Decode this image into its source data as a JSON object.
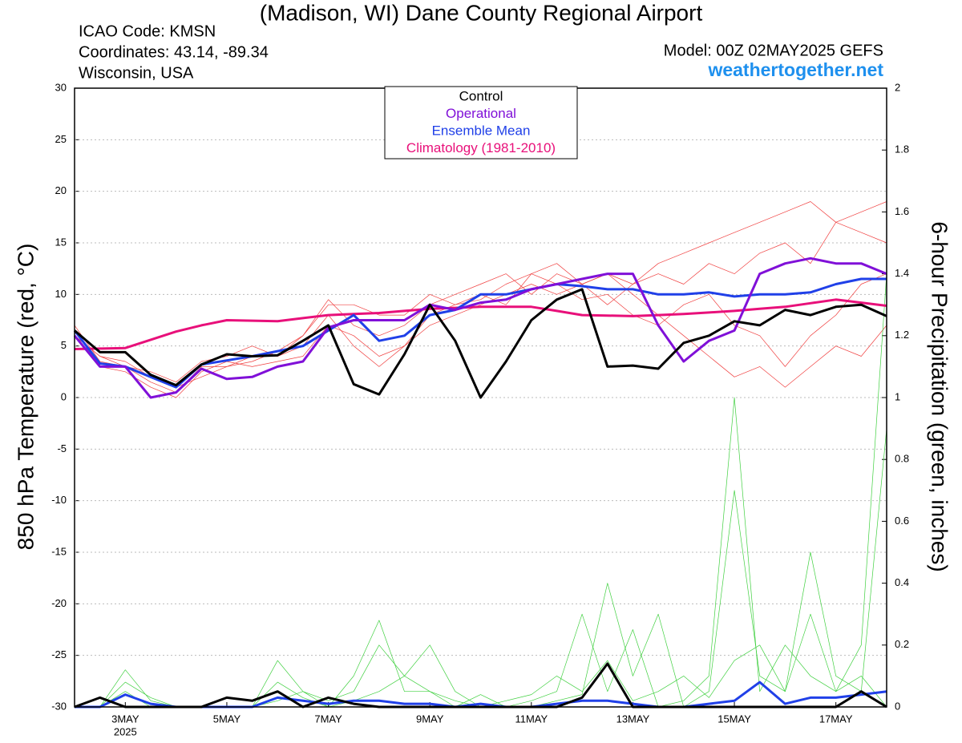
{
  "chart_data": {
    "type": "line",
    "title": "(Madison, WI) Dane County Regional Airport",
    "info_left": [
      "ICAO Code: KMSN",
      "Coordinates: 43.14, -89.34",
      "Wisconsin, USA"
    ],
    "model": "Model: 00Z 02MAY2025 GEFS",
    "site": "weathertogether.net",
    "ylabel": "850 hPa Temperature (red, °C)",
    "y2label": "6-hour Precipitation (green, inches)",
    "year_label": "2025",
    "x": [
      2,
      2.5,
      3,
      3.5,
      4,
      4.5,
      5,
      5.5,
      6,
      6.5,
      7,
      7.5,
      8,
      8.5,
      9,
      9.5,
      10,
      10.5,
      11,
      11.5,
      12,
      12.5,
      13,
      13.5,
      14,
      14.5,
      15,
      15.5,
      16,
      16.5,
      17,
      17.5,
      18
    ],
    "xlim": [
      2,
      18
    ],
    "xticks": [
      {
        "value": 3,
        "label": "3MAY"
      },
      {
        "value": 5,
        "label": "5MAY"
      },
      {
        "value": 7,
        "label": "7MAY"
      },
      {
        "value": 9,
        "label": "9MAY"
      },
      {
        "value": 11,
        "label": "11MAY"
      },
      {
        "value": 13,
        "label": "13MAY"
      },
      {
        "value": 15,
        "label": "15MAY"
      },
      {
        "value": 17,
        "label": "17MAY"
      }
    ],
    "ylim": [
      -30,
      30
    ],
    "yticks": [
      -30,
      -25,
      -20,
      -15,
      -10,
      -5,
      0,
      5,
      10,
      15,
      20,
      25,
      30
    ],
    "y2lim": [
      0,
      2
    ],
    "y2ticks": [
      0,
      0.2,
      0.4,
      0.6,
      0.8,
      1,
      1.2,
      1.4,
      1.6,
      1.8,
      2
    ],
    "grid": true,
    "legend": "top",
    "series": [
      {
        "color": "#f04040",
        "linewidth": 0.7,
        "values": [
          6,
          4,
          3,
          1.5,
          0.5,
          3,
          3,
          3.5,
          4.5,
          6,
          9,
          9,
          8,
          8,
          10,
          9,
          9.5,
          11,
          12,
          13,
          11,
          12,
          11,
          13,
          14,
          15,
          16,
          17,
          18,
          19,
          17,
          18,
          19
        ]
      },
      {
        "color": "#f04040",
        "linewidth": 0.7,
        "values": [
          6.5,
          3,
          2.5,
          1,
          0,
          2.5,
          3.5,
          3,
          3.5,
          4,
          7,
          6,
          4,
          5,
          7,
          8,
          9,
          10,
          11,
          10,
          11,
          12,
          10,
          8,
          6,
          4,
          2,
          3,
          1,
          3,
          5,
          4,
          7
        ]
      },
      {
        "color": "#f04040",
        "linewidth": 0.7,
        "values": [
          7,
          3.5,
          3,
          2.5,
          1.5,
          3.5,
          4,
          5,
          4,
          6,
          9.5,
          7,
          6,
          7,
          9,
          10,
          11,
          12,
          10,
          12,
          11,
          9,
          11,
          12,
          11,
          13,
          12,
          14,
          15,
          13,
          17,
          16,
          15
        ]
      },
      {
        "color": "#f04040",
        "linewidth": 0.7,
        "values": [
          6,
          4,
          3.5,
          2,
          1,
          2,
          3,
          4,
          4,
          5,
          8,
          5,
          3,
          5,
          8,
          9,
          10,
          9,
          12,
          11,
          9.5,
          10,
          8,
          7,
          9,
          10,
          7,
          6,
          3,
          6,
          8,
          11,
          12
        ]
      },
      {
        "color": "#40d040",
        "linewidth": 0.7,
        "axis": "y2",
        "values": [
          0,
          0,
          0.12,
          0.02,
          0,
          0,
          0,
          0,
          0.02,
          0.05,
          0,
          0.02,
          0.05,
          0.1,
          0.2,
          0.05,
          0,
          0,
          0,
          0.02,
          0.04,
          0.4,
          0.1,
          0.3,
          0,
          0.05,
          0.7,
          0.1,
          0.05,
          0.3,
          0.05,
          0.1,
          0
        ]
      },
      {
        "color": "#40d040",
        "linewidth": 0.7,
        "axis": "y2",
        "values": [
          0,
          0,
          0.05,
          0,
          0,
          0,
          0,
          0,
          0.08,
          0.03,
          0,
          0.1,
          0.28,
          0.05,
          0.05,
          0,
          0.04,
          0,
          0.02,
          0.05,
          0.3,
          0.05,
          0.25,
          0,
          0.02,
          0.1,
          1.0,
          0.05,
          0.2,
          0.1,
          0.05,
          0.2,
          1.4
        ]
      },
      {
        "color": "#40d040",
        "linewidth": 0.7,
        "axis": "y2",
        "values": [
          0,
          0,
          0.08,
          0.03,
          0,
          0,
          0,
          0,
          0.15,
          0.05,
          0.02,
          0.05,
          0.2,
          0.1,
          0.05,
          0.02,
          0,
          0.02,
          0.04,
          0.1,
          0.05,
          0.15,
          0.02,
          0.05,
          0.1,
          0.03,
          0.15,
          0.2,
          0.05,
          0.5,
          0.1,
          0.05,
          0.9
        ]
      },
      {
        "name": "Climatology (1981-2010)",
        "color": "#e8107a",
        "linewidth": 3,
        "values": [
          4.7,
          4.75,
          4.8,
          5.6,
          6.4,
          7.0,
          7.5,
          7.45,
          7.4,
          7.7,
          8.0,
          8.1,
          8.2,
          8.4,
          8.6,
          8.7,
          8.8,
          8.8,
          8.8,
          8.4,
          8.0,
          7.95,
          7.9,
          8.0,
          8.1,
          8.25,
          8.4,
          8.6,
          8.8,
          9.15,
          9.5,
          9.2,
          8.9
        ]
      },
      {
        "name": "Ensemble Mean",
        "color": "#2040e8",
        "linewidth": 3,
        "values": [
          6.5,
          3.3,
          3.0,
          2.0,
          1.0,
          3.2,
          3.6,
          4.0,
          4.5,
          5.0,
          6.5,
          8.0,
          5.5,
          6.0,
          8.0,
          8.5,
          10.0,
          10.0,
          10.5,
          11.0,
          10.8,
          10.5,
          10.5,
          10.0,
          10.0,
          10.2,
          9.8,
          10.0,
          10.0,
          10.2,
          11.0,
          11.5,
          11.5
        ]
      },
      {
        "name": "Operational",
        "color": "#8010d8",
        "linewidth": 3,
        "values": [
          6.0,
          3.0,
          3.0,
          0.0,
          0.5,
          2.8,
          1.8,
          2.0,
          3.0,
          3.5,
          6.8,
          7.5,
          7.5,
          7.5,
          9.0,
          8.5,
          9.2,
          9.5,
          10.5,
          11.0,
          11.5,
          12.0,
          12.0,
          7.0,
          3.5,
          5.5,
          6.5,
          12.0,
          13.0,
          13.5,
          13.0,
          13.0,
          12.0
        ]
      },
      {
        "name": "Control",
        "color": "#000000",
        "linewidth": 3,
        "values": [
          6.5,
          4.4,
          4.4,
          2.2,
          1.2,
          3.2,
          4.2,
          4.0,
          4.1,
          5.5,
          7.0,
          1.3,
          0.3,
          4.2,
          9.0,
          5.5,
          0.0,
          3.5,
          7.5,
          9.5,
          10.5,
          3.0,
          3.1,
          2.8,
          5.3,
          6.0,
          7.4,
          7.0,
          8.5,
          8.0,
          8.8,
          9.0,
          7.9
        ]
      },
      {
        "color": "#2040e8",
        "linewidth": 3,
        "axis": "y2",
        "values": [
          0,
          0,
          0.04,
          0.01,
          0,
          0,
          0,
          0,
          0.03,
          0.02,
          0.01,
          0.02,
          0.02,
          0.01,
          0.01,
          0,
          0.01,
          0,
          0,
          0.01,
          0.02,
          0.02,
          0.01,
          0,
          0,
          0.01,
          0.02,
          0.08,
          0.01,
          0.03,
          0.03,
          0.04,
          0.05
        ]
      },
      {
        "color": "#000000",
        "linewidth": 3,
        "axis": "y2",
        "values": [
          0,
          0.03,
          0,
          0,
          0,
          0,
          0.03,
          0.02,
          0.05,
          0,
          0.03,
          0.01,
          0,
          0,
          0,
          0,
          0,
          0,
          0,
          0,
          0.03,
          0.14,
          0,
          0,
          0,
          0,
          0,
          0,
          0,
          0,
          0,
          0.05,
          0
        ]
      }
    ]
  }
}
